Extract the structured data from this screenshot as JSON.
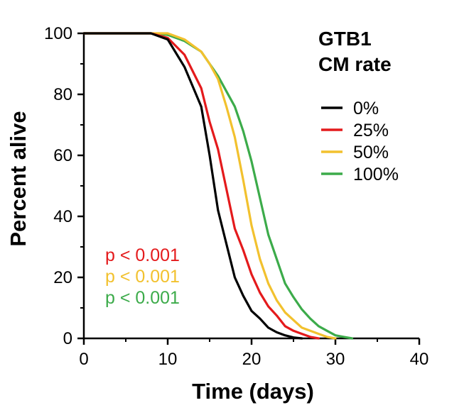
{
  "chart_data": {
    "type": "line",
    "xlabel": "Time (days)",
    "ylabel": "Percent alive",
    "xlim": [
      0,
      40
    ],
    "ylim": [
      0,
      100
    ],
    "xticks": [
      "0",
      "10",
      "20",
      "30",
      "40"
    ],
    "yticks": [
      "0",
      "20",
      "40",
      "60",
      "80",
      "100"
    ],
    "grid": false,
    "legend": {
      "title_lines": [
        "GTB1",
        "CM rate"
      ],
      "position": "top-right"
    },
    "series": [
      {
        "name": "0%",
        "color": "#000000",
        "x": [
          0,
          8,
          10,
          12,
          14,
          15,
          16,
          17,
          18,
          19,
          20,
          21,
          22,
          23,
          24,
          25,
          26
        ],
        "y": [
          100,
          100,
          98,
          89,
          76,
          60,
          42,
          31,
          20,
          14,
          9,
          6.5,
          3.5,
          2,
          1,
          0.3,
          0
        ]
      },
      {
        "name": "25%",
        "color": "#e41a1c",
        "x": [
          0,
          8,
          10,
          12,
          14,
          15,
          16,
          17,
          18,
          19,
          20,
          21,
          22,
          23,
          24,
          25,
          26,
          27,
          28
        ],
        "y": [
          100,
          100,
          98.5,
          93,
          82,
          71,
          62,
          49,
          36,
          29,
          21,
          15,
          10.5,
          7.5,
          4,
          2.5,
          1.5,
          0.5,
          0
        ]
      },
      {
        "name": "50%",
        "color": "#f2c12e",
        "x": [
          0,
          8,
          10,
          12,
          14,
          15,
          16,
          17,
          18,
          19,
          20,
          21,
          22,
          23,
          24,
          25,
          26,
          27,
          28,
          29,
          30
        ],
        "y": [
          100,
          100,
          100,
          98,
          94,
          90,
          85,
          76,
          66,
          52,
          37,
          26,
          18,
          12.5,
          8.5,
          6,
          3.5,
          2.5,
          1.5,
          0.5,
          0
        ]
      },
      {
        "name": "100%",
        "color": "#3cab4a",
        "x": [
          0,
          8,
          10,
          12,
          14,
          16,
          17,
          18,
          19,
          20,
          21,
          22,
          23,
          24,
          25,
          26,
          27,
          28,
          29,
          30,
          31,
          32
        ],
        "y": [
          100,
          100,
          99.5,
          97.5,
          94,
          86,
          81,
          76,
          68,
          58,
          46,
          34,
          26,
          18,
          13.5,
          9.5,
          6.5,
          4,
          2.5,
          1,
          0.5,
          0
        ]
      }
    ],
    "annotations": [
      {
        "text": "p < 0.001",
        "color": "#e41a1c"
      },
      {
        "text": "p < 0.001",
        "color": "#f2c12e"
      },
      {
        "text": "p < 0.001",
        "color": "#3cab4a"
      }
    ]
  }
}
